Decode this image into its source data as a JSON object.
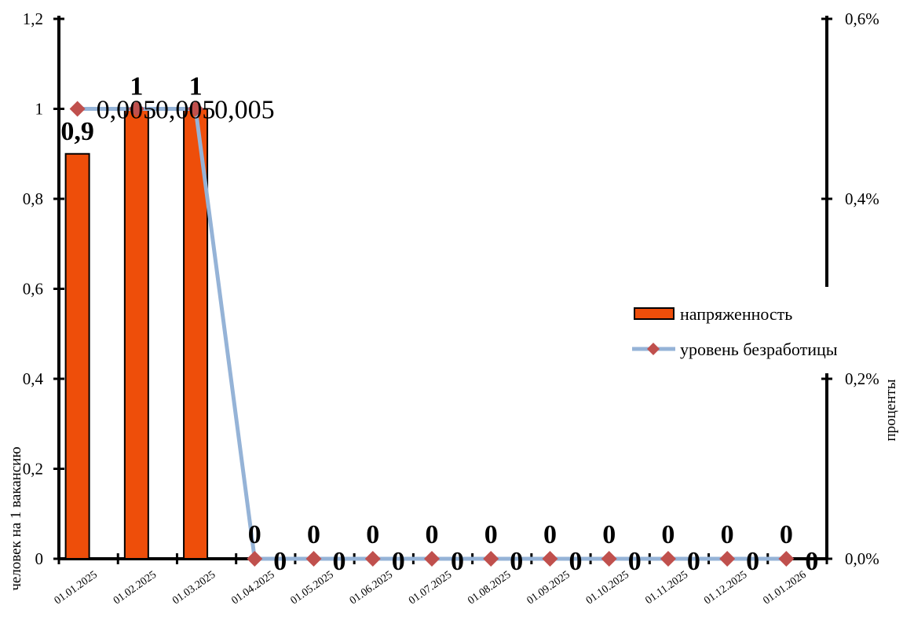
{
  "chart_data": {
    "type": "bar",
    "categories": [
      "01.01.2025",
      "01.02.2025",
      "01.03.2025",
      "01.04.2025",
      "01.05.2025",
      "01.06.2025",
      "01.07.2025",
      "01.08.2025",
      "01.09.2025",
      "01.10.2025",
      "01.11.2025",
      "01.12.2025",
      "01.01.2026"
    ],
    "series": [
      {
        "name": "напряженность",
        "type": "bar",
        "axis": "left",
        "values": [
          0.9,
          1,
          1,
          0,
          0,
          0,
          0,
          0,
          0,
          0,
          0,
          0,
          0
        ],
        "labels": [
          "0,9",
          "1",
          "1",
          "0",
          "0",
          "0",
          "0",
          "0",
          "0",
          "0",
          "0",
          "0",
          "0"
        ],
        "color": "#EE4E0A"
      },
      {
        "name": "уровень безработицы",
        "type": "line",
        "axis": "right",
        "values": [
          0.005,
          0.005,
          0.005,
          0,
          0,
          0,
          0,
          0,
          0,
          0,
          0,
          0,
          0
        ],
        "labels": [
          "0,005",
          "0,005",
          "0,005",
          "0",
          "0",
          "0",
          "0",
          "0",
          "0",
          "0",
          "0",
          "0",
          "0"
        ],
        "line_color": "#95B3D7",
        "marker_color": "#C0504D"
      }
    ],
    "ylabel": "человек на 1 вакансию",
    "y2label": "проценты",
    "ylim": [
      0,
      1.2
    ],
    "y2lim": [
      0,
      0.006
    ],
    "yticks": [
      "0",
      "0,2",
      "0,4",
      "0,6",
      "0,8",
      "1",
      "1,2"
    ],
    "y2ticks": [
      "0,0%",
      "0,2%",
      "0,4%",
      "0,6%"
    ],
    "legend": "right"
  }
}
